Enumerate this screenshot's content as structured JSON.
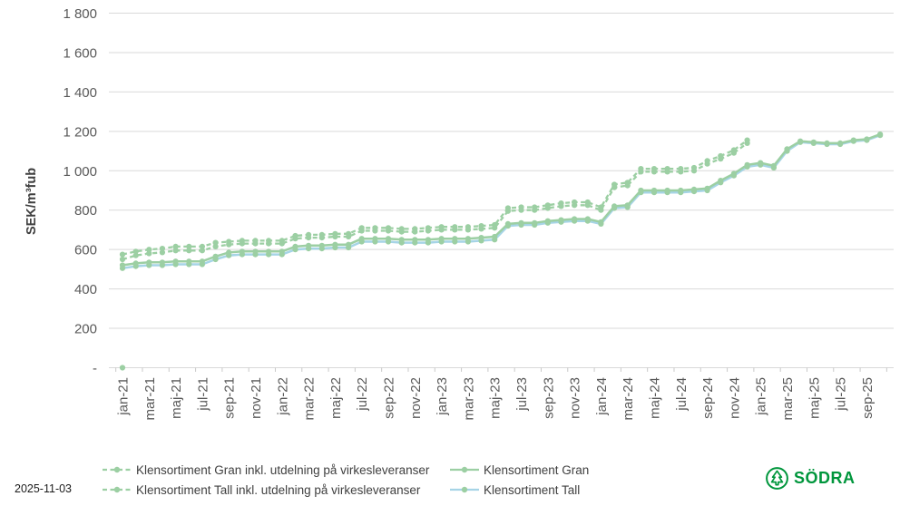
{
  "page": {
    "date_label": "2025-11-03",
    "brand": "SÖDRA"
  },
  "chart_data": {
    "type": "line",
    "title": "",
    "xlabel": "",
    "ylabel": "SEK/m³fub",
    "ylim": [
      0,
      1800
    ],
    "ytick_step": 200,
    "ytick_labels": [
      "-",
      "200",
      "400",
      "600",
      "800",
      "1 000",
      "1 200",
      "1 400",
      "1 600",
      "1 800"
    ],
    "grid": true,
    "legend_position": "bottom",
    "x_label_every": 2,
    "categories": [
      "jan-21",
      "feb-21",
      "mar-21",
      "apr-21",
      "maj-21",
      "jun-21",
      "jul-21",
      "aug-21",
      "sep-21",
      "okt-21",
      "nov-21",
      "dec-21",
      "jan-22",
      "feb-22",
      "mar-22",
      "apr-22",
      "maj-22",
      "jun-22",
      "jul-22",
      "aug-22",
      "sep-22",
      "okt-22",
      "nov-22",
      "dec-22",
      "jan-23",
      "feb-23",
      "mar-23",
      "apr-23",
      "maj-23",
      "jun-23",
      "jul-23",
      "aug-23",
      "sep-23",
      "okt-23",
      "nov-23",
      "dec-23",
      "jan-24",
      "feb-24",
      "mar-24",
      "apr-24",
      "maj-24",
      "jun-24",
      "jul-24",
      "aug-24",
      "sep-24",
      "okt-24",
      "nov-24",
      "dec-24",
      "jan-25",
      "feb-25",
      "mar-25",
      "apr-25",
      "maj-25",
      "jun-25",
      "jul-25",
      "aug-25",
      "sep-25",
      "okt-25"
    ],
    "series": [
      {
        "name": "Klensortiment Gran inkl. utdelning på virkesleveranser",
        "style": "dashed",
        "color": "#9ccfa3",
        "marker_color": "#9ccfa3",
        "values": [
          575,
          590,
          600,
          605,
          615,
          615,
          615,
          635,
          640,
          645,
          645,
          645,
          645,
          670,
          675,
          675,
          680,
          680,
          710,
          710,
          710,
          705,
          705,
          710,
          715,
          715,
          715,
          720,
          725,
          810,
          815,
          815,
          825,
          835,
          840,
          840,
          815,
          930,
          940,
          1010,
          1010,
          1010,
          1010,
          1015,
          1050,
          1075,
          1105,
          1155,
          null,
          null,
          null,
          null,
          null,
          null,
          null,
          null,
          null,
          null
        ]
      },
      {
        "name": "Klensortiment Tall inkl. utdelning på virkesleveranser",
        "style": "dashed",
        "color": "#9ccfa3",
        "marker_color": "#9ccfa3",
        "values": [
          550,
          570,
          580,
          585,
          595,
          595,
          595,
          615,
          625,
          630,
          630,
          630,
          630,
          655,
          660,
          660,
          665,
          665,
          695,
          695,
          695,
          690,
          690,
          695,
          700,
          700,
          700,
          705,
          710,
          795,
          800,
          800,
          810,
          820,
          825,
          825,
          800,
          915,
          925,
          995,
          995,
          995,
          995,
          1000,
          1035,
          1060,
          1090,
          1140,
          null,
          null,
          null,
          null,
          null,
          null,
          null,
          null,
          null,
          null
        ]
      },
      {
        "name": "Klensortiment Gran",
        "style": "solid",
        "color": "#9ccfa3",
        "marker_color": "#9ccfa3",
        "values": [
          520,
          530,
          535,
          535,
          540,
          540,
          540,
          565,
          585,
          590,
          590,
          590,
          590,
          615,
          620,
          620,
          625,
          625,
          655,
          655,
          655,
          650,
          650,
          650,
          655,
          655,
          655,
          660,
          665,
          730,
          735,
          735,
          745,
          750,
          755,
          755,
          740,
          820,
          825,
          900,
          900,
          900,
          900,
          905,
          910,
          950,
          985,
          1030,
          1040,
          1025,
          1110,
          1150,
          1145,
          1140,
          1140,
          1155,
          1160,
          1185
        ]
      },
      {
        "name": "Klensortiment Tall",
        "style": "solid",
        "color": "#a6d4e6",
        "marker_color": "#9ccfa3",
        "values": [
          505,
          515,
          520,
          520,
          525,
          525,
          525,
          550,
          570,
          575,
          575,
          575,
          575,
          600,
          605,
          605,
          610,
          610,
          640,
          640,
          640,
          635,
          635,
          635,
          640,
          640,
          640,
          645,
          650,
          720,
          725,
          725,
          735,
          740,
          745,
          745,
          730,
          810,
          815,
          890,
          890,
          890,
          890,
          895,
          900,
          940,
          975,
          1020,
          1030,
          1015,
          1100,
          1145,
          1140,
          1135,
          1135,
          1150,
          1155,
          1180
        ]
      }
    ],
    "isolated_zero_point": {
      "category": "jan-21",
      "value": 0,
      "color": "#9ccfa3"
    },
    "legend_rows": [
      [
        0,
        2
      ],
      [
        1,
        3
      ]
    ],
    "colors": {
      "grid": "#d9d9d9",
      "tick": "#c9c9c9",
      "axis_text": "#595959",
      "axis_title_text": "#404040",
      "legend_text": "#404040",
      "brand_green": "#00963c",
      "background": "#ffffff"
    }
  }
}
